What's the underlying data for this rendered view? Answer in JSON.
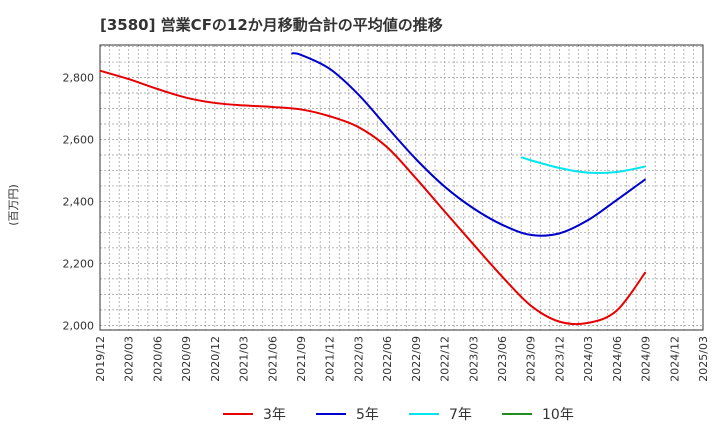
{
  "chart_data": {
    "type": "line",
    "title": "[3580]  営業CFの12か月移動合計の平均値の推移",
    "ylabel": "(百万円)",
    "xlabel": "",
    "grid": true,
    "legend_position": "bottom",
    "ylim": [
      1985,
      2905
    ],
    "yticks": [
      2000,
      2200,
      2400,
      2600,
      2800
    ],
    "ytick_labels": [
      "2,000",
      "2,200",
      "2,400",
      "2,600",
      "2,800"
    ],
    "x_start": "2019/12",
    "x_end": "2025/03",
    "x_tick_labels": [
      "2019/12",
      "2020/03",
      "2020/06",
      "2020/09",
      "2020/12",
      "2021/03",
      "2021/06",
      "2021/09",
      "2021/12",
      "2022/03",
      "2022/06",
      "2022/09",
      "2022/12",
      "2023/03",
      "2023/06",
      "2023/09",
      "2023/12",
      "2024/03",
      "2024/06",
      "2024/09",
      "2024/12",
      "2025/03"
    ],
    "series": [
      {
        "name": "3年",
        "color": "#e60000",
        "points": [
          [
            "2019/12",
            2822
          ],
          [
            "2020/03",
            2795
          ],
          [
            "2020/06",
            2763
          ],
          [
            "2020/09",
            2735
          ],
          [
            "2020/12",
            2718
          ],
          [
            "2021/03",
            2710
          ],
          [
            "2021/06",
            2705
          ],
          [
            "2021/09",
            2697
          ],
          [
            "2021/12",
            2675
          ],
          [
            "2022/03",
            2640
          ],
          [
            "2022/06",
            2575
          ],
          [
            "2022/09",
            2475
          ],
          [
            "2022/12",
            2368
          ],
          [
            "2023/03",
            2262
          ],
          [
            "2023/06",
            2158
          ],
          [
            "2023/09",
            2064
          ],
          [
            "2023/12",
            2012
          ],
          [
            "2024/03",
            2008
          ],
          [
            "2024/06",
            2048
          ],
          [
            "2024/09",
            2172
          ]
        ]
      },
      {
        "name": "5年",
        "color": "#0000cc",
        "points": [
          [
            "2021/08",
            2878
          ],
          [
            "2021/09",
            2873
          ],
          [
            "2021/12",
            2828
          ],
          [
            "2022/03",
            2745
          ],
          [
            "2022/06",
            2640
          ],
          [
            "2022/09",
            2537
          ],
          [
            "2022/12",
            2448
          ],
          [
            "2023/03",
            2378
          ],
          [
            "2023/06",
            2325
          ],
          [
            "2023/09",
            2292
          ],
          [
            "2023/12",
            2297
          ],
          [
            "2024/03",
            2340
          ],
          [
            "2024/06",
            2405
          ],
          [
            "2024/09",
            2472
          ]
        ]
      },
      {
        "name": "7年",
        "color": "#00e5ee",
        "points": [
          [
            "2023/08",
            2543
          ],
          [
            "2023/09",
            2533
          ],
          [
            "2023/12",
            2508
          ],
          [
            "2024/03",
            2493
          ],
          [
            "2024/06",
            2495
          ],
          [
            "2024/09",
            2513
          ]
        ]
      },
      {
        "name": "10年",
        "color": "#228b22",
        "points": []
      }
    ]
  }
}
